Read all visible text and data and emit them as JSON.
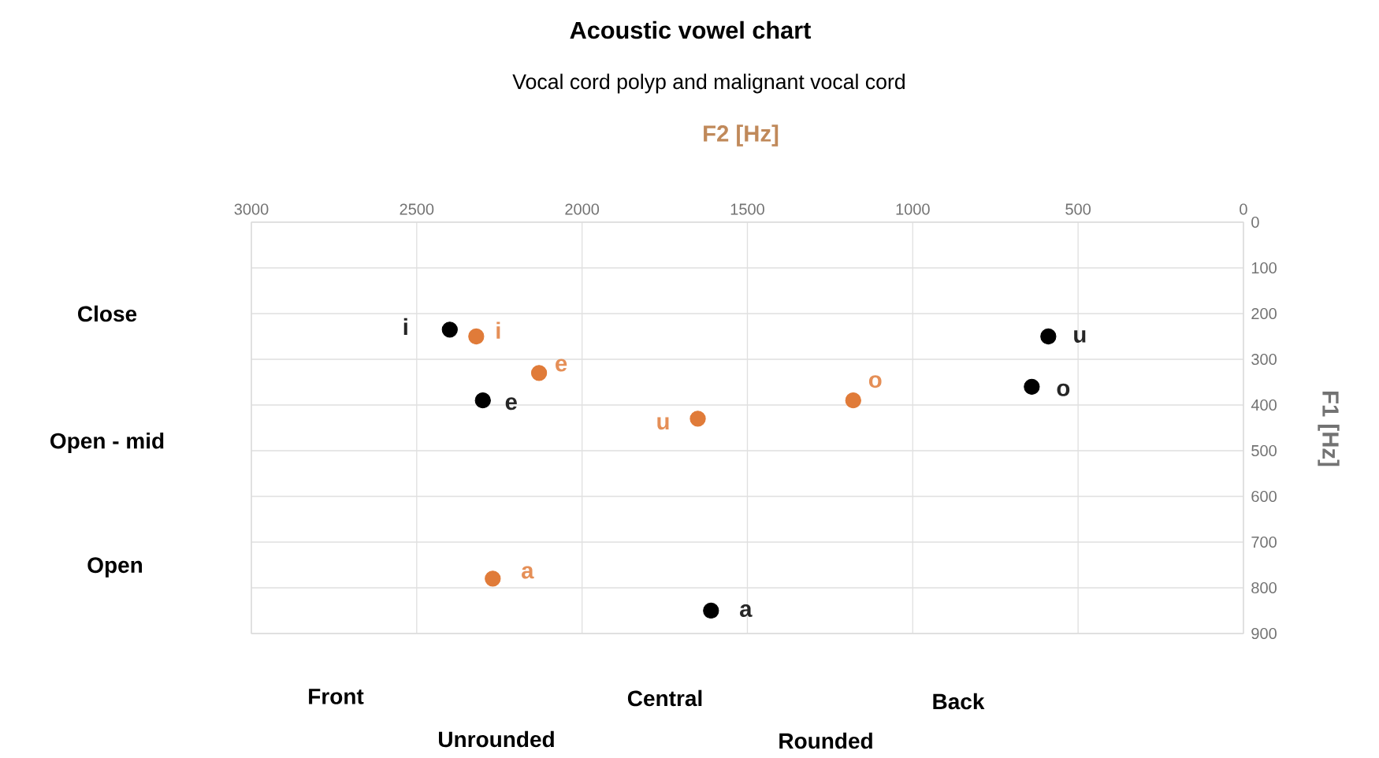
{
  "chart_data": {
    "type": "scatter",
    "title": "Acoustic vowel chart",
    "subtitle": "Vocal cord polyp and malignant vocal cord",
    "xlabel": "F2 [Hz]",
    "ylabel": "F1 [Hz]",
    "xlim": [
      3000,
      0
    ],
    "xticks": [
      3000,
      2500,
      2000,
      1500,
      1000,
      500,
      0
    ],
    "ylim": [
      900,
      0
    ],
    "yticks": [
      0,
      100,
      200,
      300,
      400,
      500,
      600,
      700,
      800,
      900
    ],
    "grid": true,
    "marker": "circle",
    "series": [
      {
        "color": "#000000",
        "x": [
          2400,
          2300,
          590,
          640,
          1610
        ],
        "values": [
          235,
          390,
          250,
          360,
          850
        ]
      },
      {
        "color": "#e07b39",
        "x": [
          2320,
          2130,
          1650,
          1180,
          2270
        ],
        "values": [
          250,
          330,
          430,
          390,
          780
        ]
      }
    ],
    "annotations": [
      {
        "text": "i",
        "x": 2400,
        "y": 235
      },
      {
        "text": "i",
        "x": 2320,
        "y": 250
      },
      {
        "text": "e",
        "x": 2130,
        "y": 330
      },
      {
        "text": "e",
        "x": 2300,
        "y": 390
      },
      {
        "text": "u",
        "x": 1650,
        "y": 430
      },
      {
        "text": "o",
        "x": 1180,
        "y": 390
      },
      {
        "text": "u",
        "x": 590,
        "y": 250
      },
      {
        "text": "o",
        "x": 640,
        "y": 360
      },
      {
        "text": "a",
        "x": 2270,
        "y": 780
      },
      {
        "text": "a",
        "x": 1610,
        "y": 850
      },
      "Close",
      "Open - mid",
      "Open",
      "Front",
      "Unrounded",
      "Central",
      "Rounded",
      "Back"
    ]
  }
}
